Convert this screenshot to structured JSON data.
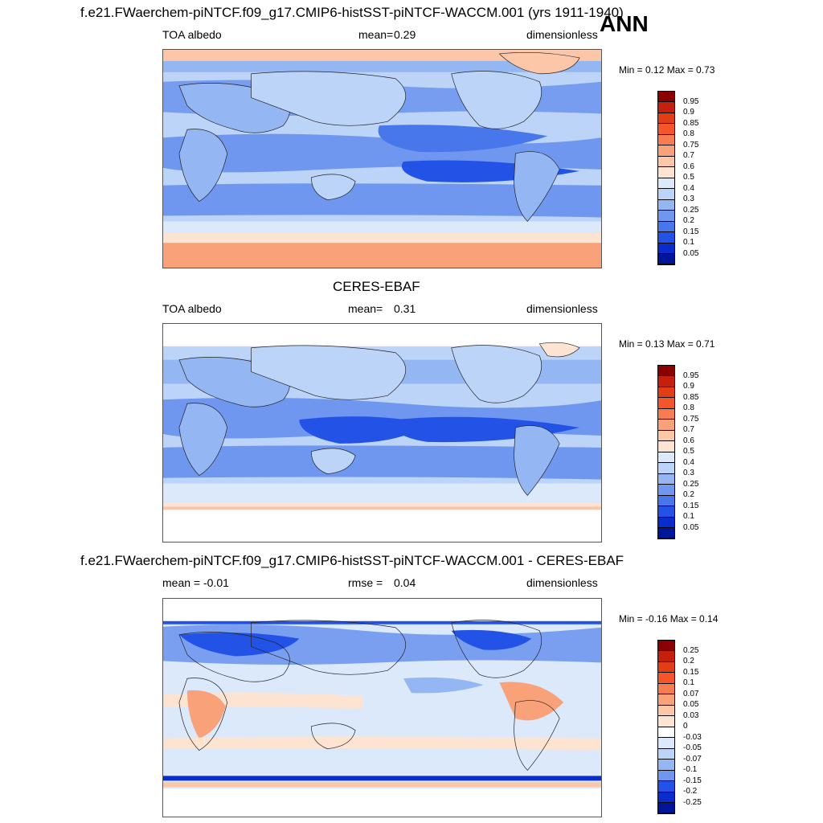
{
  "header": {
    "main_title": "f.e21.FWaerchem-piNTCF.f09_g17.CMIP6-histSST-piNTCF-WACCM.001 (yrs 1911-1940)",
    "season": "ANN"
  },
  "panels": [
    {
      "id": "model",
      "title": "",
      "left": "TOA albedo",
      "center_label": "mean=",
      "center_value": "0.29",
      "right": "dimensionless",
      "minmax": "Min =   0.12 Max =   0.73",
      "colorbar": {
        "labels": [
          "0.95",
          "0.9",
          "0.85",
          "0.8",
          "0.75",
          "0.7",
          "0.6",
          "0.5",
          "0.4",
          "0.3",
          "0.25",
          "0.2",
          "0.15",
          "0.1",
          "0.05"
        ],
        "colors": [
          "#8b0000",
          "#c4200d",
          "#e23d14",
          "#f5552a",
          "#f77c4f",
          "#f9a27a",
          "#fcc6a8",
          "#fde4d2",
          "#dbe9fb",
          "#bcd4f8",
          "#94b6f3",
          "#6f97ef",
          "#4877ec",
          "#2352e6",
          "#0a2ccc",
          "#00169a"
        ]
      }
    },
    {
      "id": "obs",
      "title": "CERES-EBAF",
      "left": "TOA albedo",
      "center_label": "mean=",
      "center_value": "0.31",
      "right": "dimensionless",
      "minmax": "Min =   0.13 Max =   0.71",
      "colorbar": {
        "labels": [
          "0.95",
          "0.9",
          "0.85",
          "0.8",
          "0.75",
          "0.7",
          "0.6",
          "0.5",
          "0.4",
          "0.3",
          "0.25",
          "0.2",
          "0.15",
          "0.1",
          "0.05"
        ],
        "colors": [
          "#8b0000",
          "#c4200d",
          "#e23d14",
          "#f5552a",
          "#f77c4f",
          "#f9a27a",
          "#fcc6a8",
          "#fde4d2",
          "#dbe9fb",
          "#bcd4f8",
          "#94b6f3",
          "#6f97ef",
          "#4877ec",
          "#2352e6",
          "#0a2ccc",
          "#00169a"
        ]
      }
    },
    {
      "id": "diff",
      "title": "f.e21.FWaerchem-piNTCF.f09_g17.CMIP6-histSST-piNTCF-WACCM.001 - CERES-EBAF",
      "left": "mean =  -0.01",
      "center_label": "rmse =",
      "center_value": "0.04",
      "right": "dimensionless",
      "minmax": "Min =  -0.16 Max =   0.14",
      "colorbar": {
        "labels": [
          "0.25",
          "0.2",
          "0.15",
          "0.1",
          "0.07",
          "0.05",
          "0.03",
          "0",
          "-0.03",
          "-0.05",
          "-0.07",
          "-0.1",
          "-0.15",
          "-0.2",
          "-0.25"
        ],
        "colors": [
          "#8b0000",
          "#c4200d",
          "#e23d14",
          "#f5552a",
          "#f77c4f",
          "#f9a27a",
          "#fcc6a8",
          "#fde4d2",
          "#ffffff",
          "#dbe9fb",
          "#bcd4f8",
          "#94b6f3",
          "#6f97ef",
          "#2352e6",
          "#0a2ccc",
          "#00169a"
        ]
      }
    }
  ],
  "chart_data": [
    {
      "type": "heatmap",
      "title": "f.e21.FWaerchem-piNTCF.f09_g17.CMIP6-histSST-piNTCF-WACCM.001 (yrs 1911-1940)",
      "variable": "TOA albedo",
      "units": "dimensionless",
      "mean": 0.29,
      "min": 0.12,
      "max": 0.73,
      "levels": [
        0.05,
        0.1,
        0.15,
        0.2,
        0.25,
        0.3,
        0.4,
        0.5,
        0.6,
        0.7,
        0.75,
        0.8,
        0.85,
        0.9,
        0.95
      ]
    },
    {
      "type": "heatmap",
      "title": "CERES-EBAF",
      "variable": "TOA albedo",
      "units": "dimensionless",
      "mean": 0.31,
      "min": 0.13,
      "max": 0.71,
      "levels": [
        0.05,
        0.1,
        0.15,
        0.2,
        0.25,
        0.3,
        0.4,
        0.5,
        0.6,
        0.7,
        0.75,
        0.8,
        0.85,
        0.9,
        0.95
      ]
    },
    {
      "type": "heatmap",
      "title": "f.e21.FWaerchem-piNTCF.f09_g17.CMIP6-histSST-piNTCF-WACCM.001 - CERES-EBAF",
      "units": "dimensionless",
      "mean": -0.01,
      "rmse": 0.04,
      "min": -0.16,
      "max": 0.14,
      "levels": [
        -0.25,
        -0.2,
        -0.15,
        -0.1,
        -0.07,
        -0.05,
        -0.03,
        0,
        0.03,
        0.05,
        0.07,
        0.1,
        0.15,
        0.2,
        0.25
      ]
    }
  ]
}
